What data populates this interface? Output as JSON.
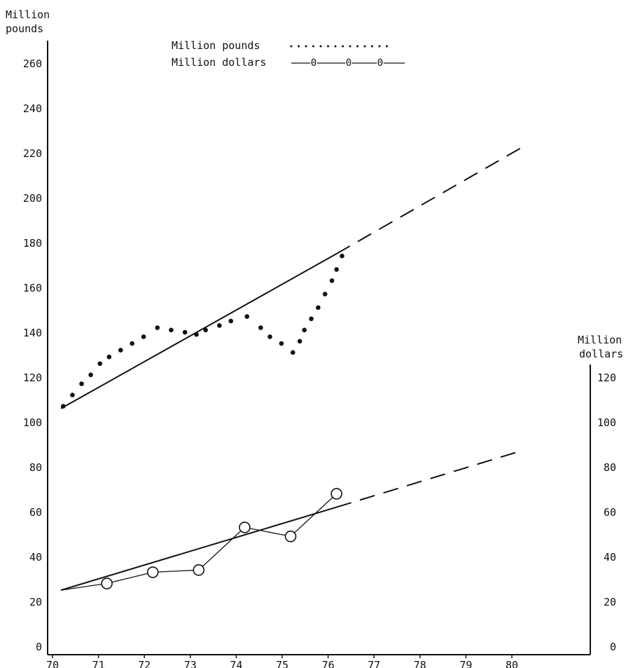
{
  "chart_data": {
    "type": "line",
    "left_axis_label": [
      "Million",
      "pounds"
    ],
    "right_axis_label": [
      "Million",
      "dollars"
    ],
    "left_ticks": [
      0,
      20,
      40,
      60,
      80,
      100,
      120,
      140,
      160,
      180,
      200,
      220,
      240,
      260
    ],
    "right_ticks": [
      0,
      20,
      40,
      60,
      80,
      100,
      120
    ],
    "x_ticks": [
      70,
      71,
      72,
      73,
      74,
      75,
      76,
      77,
      78,
      79,
      80
    ],
    "xlim": [
      70,
      80
    ],
    "left_ylim": [
      0,
      260
    ],
    "right_ylim": [
      0,
      120
    ],
    "legend": {
      "pounds_label": "Million pounds",
      "dollars_label": "Million dollars"
    },
    "series": [
      {
        "name": "Million pounds",
        "axis": "left",
        "style": "dotted",
        "x": [
          70.05,
          70.25,
          70.45,
          70.65,
          70.85,
          71.05,
          71.3,
          71.55,
          71.8,
          72.1,
          72.4,
          72.7,
          72.95,
          73.15,
          73.45,
          73.7,
          74.05,
          74.35,
          74.55,
          74.8,
          75.05,
          75.2,
          75.3,
          75.45,
          75.6,
          75.75,
          75.9,
          76.0,
          76.12
        ],
        "values": [
          107,
          112,
          117,
          121,
          126,
          129,
          132,
          135,
          138,
          142,
          141,
          140,
          139,
          141,
          143,
          145,
          147,
          142,
          138,
          135,
          131,
          136,
          141,
          146,
          151,
          157,
          163,
          168,
          174
        ]
      },
      {
        "name": "Million pounds trend",
        "axis": "left",
        "style": "solid-then-dashed",
        "x": [
          70,
          76,
          80
        ],
        "values": [
          106,
          175,
          222
        ]
      },
      {
        "name": "Million dollars",
        "axis": "right",
        "style": "solid-circle-markers",
        "x": [
          70,
          71,
          72,
          73,
          74,
          75,
          76
        ],
        "values": [
          25,
          28,
          33,
          34,
          53,
          49,
          68
        ]
      },
      {
        "name": "Million dollars trend",
        "axis": "right",
        "style": "solid-then-dashed",
        "x": [
          70,
          76,
          80
        ],
        "values": [
          25,
          62,
          87
        ]
      }
    ]
  }
}
